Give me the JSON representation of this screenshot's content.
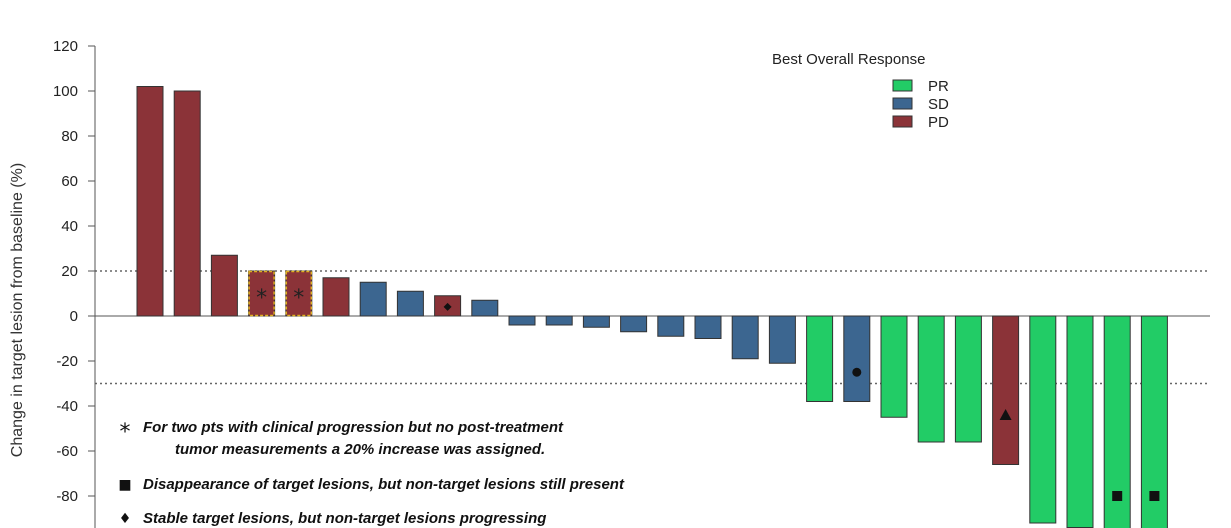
{
  "chart_data": {
    "type": "bar",
    "title": "",
    "ylabel": "Change in target lesion from baseline (%)",
    "ylim": [
      -100,
      120
    ],
    "yticks": [
      120,
      100,
      80,
      60,
      40,
      20,
      0,
      -20,
      -40,
      -60,
      -80
    ],
    "reference_lines": [
      20,
      -30
    ],
    "legend": {
      "title": "Best Overall Response",
      "position": "top-right",
      "entries": [
        {
          "label": "PR",
          "color": "#22cc66"
        },
        {
          "label": "SD",
          "color": "#3c6690"
        },
        {
          "label": "PD",
          "color": "#8b3338"
        }
      ]
    },
    "bars": [
      {
        "value": 102,
        "response": "PD",
        "marker": ""
      },
      {
        "value": 100,
        "response": "PD",
        "marker": ""
      },
      {
        "value": 27,
        "response": "PD",
        "marker": ""
      },
      {
        "value": 20,
        "response": "PD",
        "marker": "star",
        "assigned": true
      },
      {
        "value": 20,
        "response": "PD",
        "marker": "star",
        "assigned": true
      },
      {
        "value": 17,
        "response": "PD",
        "marker": ""
      },
      {
        "value": 15,
        "response": "SD",
        "marker": ""
      },
      {
        "value": 11,
        "response": "SD",
        "marker": ""
      },
      {
        "value": 9,
        "response": "PD",
        "marker": "diamond"
      },
      {
        "value": 7,
        "response": "SD",
        "marker": ""
      },
      {
        "value": -4,
        "response": "SD",
        "marker": ""
      },
      {
        "value": -4,
        "response": "SD",
        "marker": ""
      },
      {
        "value": -5,
        "response": "SD",
        "marker": ""
      },
      {
        "value": -7,
        "response": "SD",
        "marker": ""
      },
      {
        "value": -9,
        "response": "SD",
        "marker": ""
      },
      {
        "value": -10,
        "response": "SD",
        "marker": ""
      },
      {
        "value": -19,
        "response": "SD",
        "marker": ""
      },
      {
        "value": -21,
        "response": "SD",
        "marker": ""
      },
      {
        "value": -38,
        "response": "PR",
        "marker": ""
      },
      {
        "value": -38,
        "response": "SD",
        "marker": "circle"
      },
      {
        "value": -45,
        "response": "PR",
        "marker": ""
      },
      {
        "value": -56,
        "response": "PR",
        "marker": ""
      },
      {
        "value": -56,
        "response": "PR",
        "marker": ""
      },
      {
        "value": -66,
        "response": "PD",
        "marker": "triangle"
      },
      {
        "value": -92,
        "response": "PR",
        "marker": ""
      },
      {
        "value": -94,
        "response": "PR",
        "marker": ""
      },
      {
        "value": -100,
        "response": "PR",
        "marker": "square"
      },
      {
        "value": -100,
        "response": "PR",
        "marker": "square"
      }
    ],
    "annotations": [
      {
        "symbol": "star",
        "glyph": "*",
        "text": "For two pts with clinical progression but no post-treatment"
      },
      {
        "symbol": "",
        "glyph": "",
        "text": "tumor measurements a 20% increase was assigned."
      },
      {
        "symbol": "square",
        "glyph": "■",
        "text": "Disappearance of target lesions, but non-target lesions still present"
      },
      {
        "symbol": "diamond",
        "glyph": "♦",
        "text": "Stable target lesions, but non-target lesions progressing"
      }
    ]
  }
}
